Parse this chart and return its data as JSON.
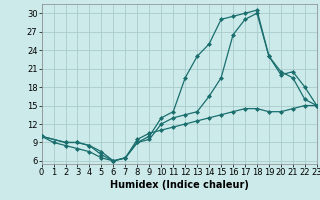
{
  "title": "",
  "xlabel": "Humidex (Indice chaleur)",
  "background_color": "#cceaea",
  "grid_color": "#aacccc",
  "line_color": "#1a6e6e",
  "series": [
    {
      "x": [
        0,
        1,
        2,
        3,
        4,
        5,
        6,
        7,
        8,
        9,
        10,
        11,
        12,
        13,
        14,
        15,
        16,
        17,
        18,
        19,
        20,
        21,
        22,
        23
      ],
      "y": [
        10,
        9,
        8.5,
        8,
        7.5,
        6.5,
        6,
        6.5,
        9.5,
        10.5,
        11,
        11.5,
        12,
        12.5,
        13,
        13.5,
        14,
        14.5,
        14.5,
        14,
        14,
        14.5,
        15,
        15
      ]
    },
    {
      "x": [
        0,
        2,
        3,
        4,
        5,
        6,
        7,
        8,
        9,
        10,
        11,
        12,
        13,
        14,
        15,
        16,
        17,
        18,
        19,
        20,
        21,
        22,
        23
      ],
      "y": [
        10,
        9,
        9,
        8.5,
        7.5,
        6,
        6.5,
        9,
        10,
        13,
        14,
        19.5,
        23,
        25,
        29,
        29.5,
        30,
        30.5,
        23,
        20.5,
        19.5,
        16,
        15
      ]
    },
    {
      "x": [
        0,
        2,
        3,
        4,
        5,
        6,
        7,
        8,
        9,
        10,
        11,
        12,
        13,
        14,
        15,
        16,
        17,
        18,
        19,
        20,
        21,
        22,
        23
      ],
      "y": [
        10,
        9,
        9,
        8.5,
        7,
        6,
        6.5,
        9,
        9.5,
        12,
        13,
        13.5,
        14,
        16.5,
        19.5,
        26.5,
        29,
        30,
        23,
        20,
        20.5,
        18,
        15
      ]
    }
  ],
  "xlim": [
    0,
    23
  ],
  "ylim": [
    5.5,
    31.5
  ],
  "yticks": [
    6,
    9,
    12,
    15,
    18,
    21,
    24,
    27,
    30
  ],
  "xticks": [
    0,
    1,
    2,
    3,
    4,
    5,
    6,
    7,
    8,
    9,
    10,
    11,
    12,
    13,
    14,
    15,
    16,
    17,
    18,
    19,
    20,
    21,
    22,
    23
  ],
  "xlabel_fontsize": 7,
  "tick_fontsize": 6,
  "ylabel_fontsize": 7
}
